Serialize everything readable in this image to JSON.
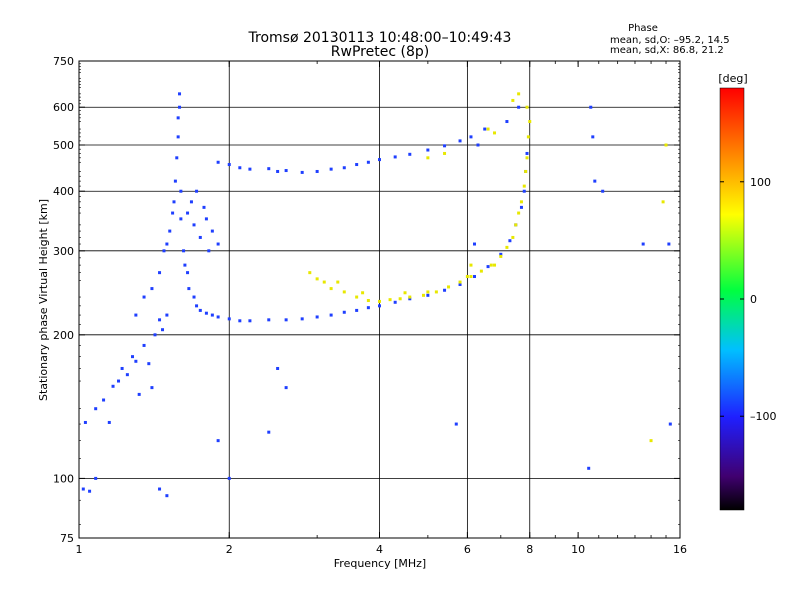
{
  "header": {
    "title_line1": "Tromsø 20130113 10:48:00–10:49:43",
    "title_line2": "RwPretec (8p)"
  },
  "phase_box": {
    "label": "Phase",
    "line_o": "mean, sd,O: –95.2, 14.5",
    "line_x": "mean, sd,X:  86.8, 21.2"
  },
  "colorbar": {
    "unit_label": "[deg]",
    "ticks": [
      "100",
      "0",
      "–100"
    ],
    "tick_values": [
      100,
      0,
      -100
    ],
    "range": [
      -180,
      180
    ]
  },
  "chart_data": {
    "type": "scatter",
    "xlabel": "Frequency [MHz]",
    "ylabel": "Stationary phase Virtual Height [km]",
    "x_scale": "log",
    "y_scale": "log",
    "xlim": [
      1,
      16
    ],
    "ylim": [
      75,
      750
    ],
    "x_ticks": [
      1,
      2,
      4,
      6,
      8,
      10,
      16
    ],
    "x_tick_labels": [
      "1",
      "2",
      "4",
      "6",
      "8",
      "10",
      "16"
    ],
    "y_ticks": [
      75,
      100,
      200,
      300,
      400,
      500,
      600,
      750
    ],
    "y_tick_labels": [
      "75",
      "100",
      "200",
      "300",
      "400",
      "500",
      "600",
      "750"
    ],
    "grid_x": [
      2,
      4,
      6,
      8
    ],
    "grid_y": [
      100,
      200,
      300,
      400,
      500,
      600
    ],
    "colors": {
      "O_mode": "#1f3fff",
      "X_mode": "#e8e800"
    },
    "series": [
      {
        "points": [
          [
            1.02,
            95
          ],
          [
            1.05,
            94
          ],
          [
            1.08,
            100
          ],
          [
            1.03,
            131
          ],
          [
            1.08,
            140
          ],
          [
            1.12,
            146
          ],
          [
            1.15,
            131
          ],
          [
            1.17,
            156
          ],
          [
            1.2,
            160
          ],
          [
            1.22,
            170
          ],
          [
            1.25,
            165
          ],
          [
            1.28,
            180
          ],
          [
            1.3,
            176
          ],
          [
            1.32,
            150
          ],
          [
            1.35,
            190
          ],
          [
            1.38,
            174
          ],
          [
            1.4,
            155
          ],
          [
            1.42,
            200
          ],
          [
            1.45,
            215
          ],
          [
            1.47,
            205
          ],
          [
            1.5,
            220
          ],
          [
            1.3,
            220
          ],
          [
            1.35,
            240
          ],
          [
            1.4,
            250
          ],
          [
            1.45,
            270
          ],
          [
            1.48,
            300
          ],
          [
            1.5,
            310
          ],
          [
            1.52,
            330
          ],
          [
            1.54,
            360
          ],
          [
            1.55,
            380
          ],
          [
            1.56,
            420
          ],
          [
            1.57,
            470
          ],
          [
            1.58,
            520
          ],
          [
            1.58,
            570
          ],
          [
            1.59,
            600
          ],
          [
            1.59,
            640
          ],
          [
            1.6,
            400
          ],
          [
            1.6,
            350
          ],
          [
            1.62,
            300
          ],
          [
            1.63,
            280
          ],
          [
            1.65,
            270
          ],
          [
            1.66,
            250
          ],
          [
            1.7,
            240
          ],
          [
            1.72,
            230
          ],
          [
            1.75,
            225
          ],
          [
            1.8,
            222
          ],
          [
            1.85,
            220
          ],
          [
            1.9,
            218
          ],
          [
            2.0,
            216
          ],
          [
            2.1,
            214
          ],
          [
            2.2,
            214
          ],
          [
            2.4,
            215
          ],
          [
            2.6,
            215
          ],
          [
            2.8,
            216
          ],
          [
            3.0,
            218
          ],
          [
            3.2,
            220
          ],
          [
            3.4,
            223
          ],
          [
            3.6,
            225
          ],
          [
            3.8,
            228
          ],
          [
            4.0,
            230
          ],
          [
            4.3,
            234
          ],
          [
            4.6,
            238
          ],
          [
            5.0,
            242
          ],
          [
            5.4,
            248
          ],
          [
            5.8,
            255
          ],
          [
            6.2,
            265
          ],
          [
            6.6,
            278
          ],
          [
            7.0,
            295
          ],
          [
            7.3,
            315
          ],
          [
            7.5,
            340
          ],
          [
            7.7,
            370
          ],
          [
            7.8,
            400
          ],
          [
            7.85,
            440
          ],
          [
            7.9,
            480
          ],
          [
            1.65,
            360
          ],
          [
            1.7,
            340
          ],
          [
            1.75,
            320
          ],
          [
            1.8,
            350
          ],
          [
            1.85,
            330
          ],
          [
            1.9,
            310
          ],
          [
            1.68,
            380
          ],
          [
            1.72,
            400
          ],
          [
            1.78,
            370
          ],
          [
            1.82,
            300
          ],
          [
            1.9,
            460
          ],
          [
            2.0,
            455
          ],
          [
            2.1,
            448
          ],
          [
            2.2,
            445
          ],
          [
            2.4,
            446
          ],
          [
            2.5,
            440
          ],
          [
            2.6,
            442
          ],
          [
            2.8,
            438
          ],
          [
            3.0,
            440
          ],
          [
            3.2,
            445
          ],
          [
            3.4,
            448
          ],
          [
            3.6,
            455
          ],
          [
            3.8,
            460
          ],
          [
            4.0,
            466
          ],
          [
            4.3,
            472
          ],
          [
            4.6,
            478
          ],
          [
            5.0,
            488
          ],
          [
            5.4,
            498
          ],
          [
            5.8,
            510
          ],
          [
            6.1,
            520
          ],
          [
            6.3,
            500
          ],
          [
            6.5,
            540
          ],
          [
            7.2,
            560
          ],
          [
            7.6,
            600
          ],
          [
            10.6,
            600
          ],
          [
            10.7,
            520
          ],
          [
            10.8,
            420
          ],
          [
            11.2,
            400
          ],
          [
            13.5,
            310
          ],
          [
            10.5,
            105
          ],
          [
            15.2,
            310
          ],
          [
            15.3,
            130
          ],
          [
            1.9,
            120
          ],
          [
            2.0,
            100
          ],
          [
            1.45,
            95
          ],
          [
            1.5,
            92
          ],
          [
            2.5,
            170
          ],
          [
            2.6,
            155
          ],
          [
            2.4,
            125
          ],
          [
            5.7,
            130
          ],
          [
            6.2,
            310
          ]
        ]
      },
      {
        "points": [
          [
            2.9,
            270
          ],
          [
            3.0,
            262
          ],
          [
            3.1,
            258
          ],
          [
            3.2,
            250
          ],
          [
            3.4,
            246
          ],
          [
            3.6,
            240
          ],
          [
            3.8,
            236
          ],
          [
            4.0,
            235
          ],
          [
            4.2,
            237
          ],
          [
            4.4,
            238
          ],
          [
            4.6,
            240
          ],
          [
            4.9,
            242
          ],
          [
            5.2,
            246
          ],
          [
            5.5,
            252
          ],
          [
            5.8,
            258
          ],
          [
            6.1,
            265
          ],
          [
            6.4,
            272
          ],
          [
            6.7,
            280
          ],
          [
            7.0,
            292
          ],
          [
            7.2,
            305
          ],
          [
            7.4,
            320
          ],
          [
            7.5,
            340
          ],
          [
            7.6,
            360
          ],
          [
            7.7,
            380
          ],
          [
            7.8,
            410
          ],
          [
            7.85,
            440
          ],
          [
            7.9,
            470
          ],
          [
            7.95,
            520
          ],
          [
            8.0,
            560
          ],
          [
            7.9,
            600
          ],
          [
            7.6,
            640
          ],
          [
            7.4,
            620
          ],
          [
            6.6,
            540
          ],
          [
            6.8,
            530
          ],
          [
            5.0,
            470
          ],
          [
            5.4,
            480
          ],
          [
            3.3,
            258
          ],
          [
            3.7,
            245
          ],
          [
            4.5,
            245
          ],
          [
            5.0,
            246
          ],
          [
            6.0,
            265
          ],
          [
            6.8,
            280
          ],
          [
            15.0,
            500
          ],
          [
            14.8,
            380
          ],
          [
            14.0,
            120
          ],
          [
            6.1,
            280
          ]
        ]
      }
    ]
  }
}
